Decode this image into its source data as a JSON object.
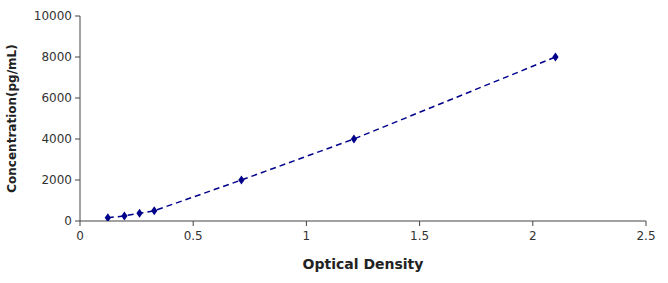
{
  "chart_data": {
    "type": "line",
    "xlabel": "Optical Density",
    "ylabel": "Concentration(pg/mL)",
    "x": [
      0.123,
      0.196,
      0.263,
      0.328,
      0.713,
      1.21,
      2.1
    ],
    "values": [
      156,
      250,
      375,
      500,
      2000,
      4000,
      8000
    ],
    "color": "#00008B",
    "marker": "diamond",
    "line_style": "dashed",
    "xlim": [
      0,
      2.5
    ],
    "ylim": [
      0,
      10000
    ],
    "xticks": [
      0,
      0.5,
      1,
      1.5,
      2,
      2.5
    ],
    "yticks": [
      0,
      2000,
      4000,
      6000,
      8000,
      10000
    ],
    "grid": false
  }
}
